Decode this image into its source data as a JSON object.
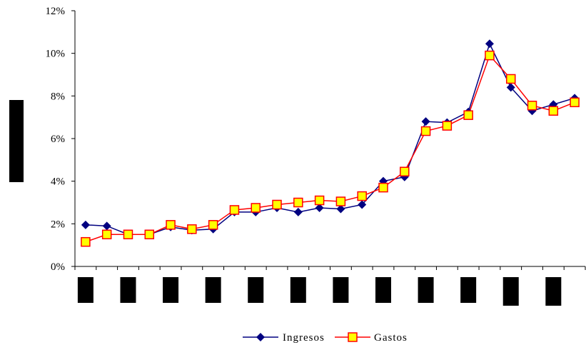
{
  "chart_data": {
    "type": "line",
    "x_count": 24,
    "y_ticks": [
      "0%",
      "2%",
      "4%",
      "6%",
      "8%",
      "10%",
      "12%"
    ],
    "ylim": [
      0,
      12
    ],
    "grid": false,
    "legend_position": "bottom",
    "series": [
      {
        "name": "Ingresos",
        "color": "#000080",
        "marker": "diamond",
        "values": [
          1.95,
          1.9,
          1.5,
          1.5,
          1.85,
          1.7,
          1.75,
          2.55,
          2.55,
          2.75,
          2.55,
          2.75,
          2.7,
          2.9,
          4.0,
          4.2,
          6.8,
          6.75,
          7.25,
          10.45,
          8.4,
          7.3,
          7.6,
          7.9
        ]
      },
      {
        "name": "Gastos",
        "color": "#ff0000",
        "fill": "#ffff00",
        "marker": "square",
        "values": [
          1.15,
          1.5,
          1.5,
          1.5,
          1.95,
          1.75,
          1.95,
          2.65,
          2.75,
          2.9,
          3.0,
          3.1,
          3.05,
          3.3,
          3.7,
          4.45,
          6.35,
          6.6,
          7.1,
          9.9,
          8.8,
          7.55,
          7.3,
          7.7
        ]
      }
    ],
    "legend": {
      "ingresos_label": "Ingresos",
      "gastos_label": "Gastos"
    }
  }
}
